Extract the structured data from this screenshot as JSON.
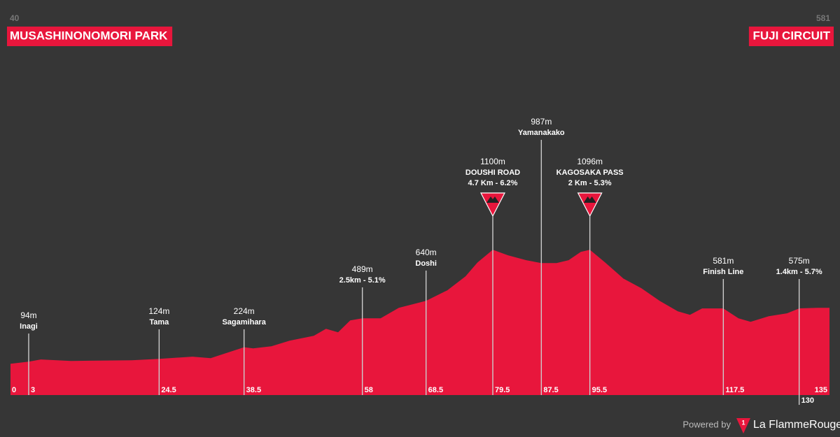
{
  "chart_data": {
    "type": "area",
    "start_elevation": 40,
    "start_name": "MUSASHINONOMORI PARK",
    "finish_elevation": 581,
    "finish_name": "FUJI CIRCUIT",
    "color": "#e8163c",
    "xlim": [
      0,
      135
    ],
    "ylim": [
      -200,
      1300
    ],
    "xticks": [
      0,
      135
    ],
    "x": [
      0,
      3,
      5,
      10,
      20,
      24.5,
      30,
      33,
      38.5,
      40,
      43,
      46,
      50,
      52,
      54,
      56,
      58,
      61,
      64,
      68.5,
      72,
      75,
      77,
      79.5,
      82,
      85,
      87.5,
      90,
      92,
      94,
      95.5,
      98,
      101,
      104,
      107,
      110,
      112,
      114,
      117.5,
      120,
      122,
      125,
      128,
      130,
      133,
      135
    ],
    "values": [
      82,
      100,
      120,
      107,
      113,
      126,
      145,
      132,
      230,
      220,
      239,
      289,
      333,
      396,
      365,
      472,
      490,
      490,
      585,
      648,
      742,
      868,
      994,
      1107,
      1057,
      1013,
      987,
      987,
      1013,
      1088,
      1107,
      994,
      849,
      761,
      648,
      553,
      522,
      579,
      579,
      490,
      459,
      509,
      535,
      579,
      585,
      585
    ],
    "points": [
      {
        "km": 3,
        "elevation": 94,
        "elevation_label": "94m",
        "name": "Inagi"
      },
      {
        "km": 24.5,
        "elevation": 124,
        "elevation_label": "124m",
        "name": "Tama"
      },
      {
        "km": 38.5,
        "elevation": 224,
        "elevation_label": "224m",
        "name": "Sagamihara"
      },
      {
        "km": 58,
        "elevation": 489,
        "elevation_label": "489m",
        "stats": "2.5km - 5.1%"
      },
      {
        "km": 68.5,
        "elevation": 640,
        "elevation_label": "640m",
        "name": "Doshi"
      },
      {
        "km": 79.5,
        "elevation": 1100,
        "elevation_label": "1100m",
        "name": "DOUSHI ROAD",
        "stats": "4.7 Km - 6.2%"
      },
      {
        "km": 87.5,
        "elevation": 987,
        "elevation_label": "987m",
        "name": "Yamanakako"
      },
      {
        "km": 95.5,
        "elevation": 1096,
        "elevation_label": "1096m",
        "name": "KAGOSAKA PASS",
        "stats": "2 Km - 5.3%"
      },
      {
        "km": 117.5,
        "elevation": 581,
        "elevation_label": "581m",
        "name": "Finish Line"
      },
      {
        "km": 130,
        "elevation": 575,
        "elevation_label": "575m",
        "stats": "1.4km - 5.7%"
      }
    ],
    "footer": "Powered by",
    "brand": "La FlammeRouge",
    "brand_mark": "1"
  }
}
